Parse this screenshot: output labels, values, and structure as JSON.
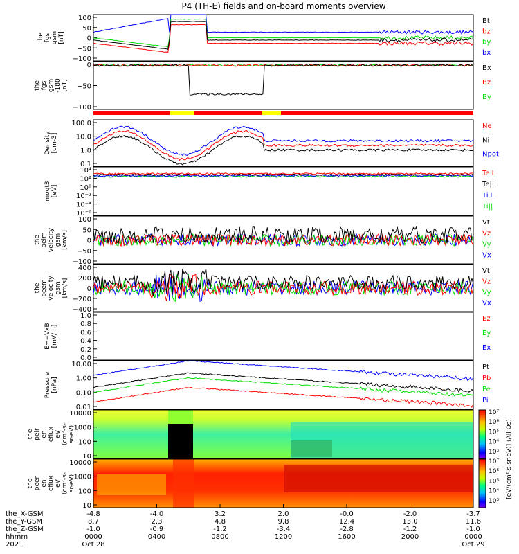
{
  "title": "P4 (TH-E) fields and on-board moments overview",
  "colors": {
    "black": "#000000",
    "red": "#ff0000",
    "green": "#00dd00",
    "blue": "#0000ff",
    "yellow": "#ffff00"
  },
  "chart_data": [
    {
      "type": "line",
      "ylabel": [
        "the",
        "fgs",
        "gsm",
        "[nT]"
      ],
      "ylim": [
        -100,
        100
      ],
      "yticks": [
        "100",
        "50",
        "0",
        "−50",
        "−100"
      ],
      "legend": [
        {
          "name": "Bt",
          "color": "#000000"
        },
        {
          "name": "bz",
          "color": "#ff0000"
        },
        {
          "name": "by",
          "color": "#00dd00"
        },
        {
          "name": "bx",
          "color": "#0000ff"
        }
      ]
    },
    {
      "type": "line",
      "ylabel": [
        "the",
        "fgs",
        "gsm",
        "-180",
        "[nT]"
      ],
      "ylim": [
        -120,
        10
      ],
      "yticks": [
        "0",
        "−50",
        "−100"
      ],
      "legend": [
        {
          "name": "Bx",
          "color": "#000000"
        },
        {
          "name": "Bz",
          "color": "#ff0000"
        },
        {
          "name": "By",
          "color": "#00dd00"
        }
      ]
    },
    {
      "type": "line",
      "ylabel": [
        "Density",
        "[cm-3]"
      ],
      "yscale": "log",
      "ylim": [
        0.1,
        100
      ],
      "yticks": [
        "100.0",
        "10.0",
        "1.0",
        "0.1"
      ],
      "legend": [
        {
          "name": "Ne",
          "color": "#ff0000"
        },
        {
          "name": "Ni",
          "color": "#000000"
        },
        {
          "name": "Npot",
          "color": "#0000ff"
        }
      ]
    },
    {
      "type": "line",
      "ylabel": [
        "moqt3",
        "[eV]"
      ],
      "yscale": "log",
      "yticks": [
        "10⁴",
        "10²",
        "10⁰",
        "10⁻²",
        "10⁻⁴",
        "10⁻⁶"
      ],
      "legend": [
        {
          "name": "Te⊥",
          "color": "#ff0000"
        },
        {
          "name": "Te||",
          "color": "#000000"
        },
        {
          "name": "Ti⊥",
          "color": "#0000ff"
        },
        {
          "name": "Ti||",
          "color": "#00dd00"
        }
      ]
    },
    {
      "type": "line",
      "ylabel": [
        "the",
        "peim",
        "velocity",
        "gsm",
        "[km/s]"
      ],
      "ylim": [
        -100,
        100
      ],
      "yticks": [
        "100",
        "50",
        "0",
        "−50",
        "−100"
      ],
      "legend": [
        {
          "name": "Vt",
          "color": "#000000"
        },
        {
          "name": "Vz",
          "color": "#ff0000"
        },
        {
          "name": "Vy",
          "color": "#00dd00"
        },
        {
          "name": "Vx",
          "color": "#0000ff"
        }
      ]
    },
    {
      "type": "line",
      "ylabel": [
        "the",
        "peem",
        "velocity",
        "gsm",
        "[km/s]"
      ],
      "ylim": [
        -400,
        400
      ],
      "yticks": [
        "400",
        "200",
        "0",
        "−200",
        "−400"
      ],
      "legend": [
        {
          "name": "Vt",
          "color": "#000000"
        },
        {
          "name": "Vz",
          "color": "#ff0000"
        },
        {
          "name": "Vy",
          "color": "#00dd00"
        },
        {
          "name": "Vx",
          "color": "#0000ff"
        }
      ]
    },
    {
      "type": "line",
      "ylabel": [
        "E=−VxB",
        "[mV/m]"
      ],
      "ylim": [
        0,
        1
      ],
      "yticks": [
        "1.0",
        "0.8",
        "0.6",
        "0.4",
        "0.2",
        "0.0"
      ],
      "legend": [
        {
          "name": "Ez",
          "color": "#ff0000"
        },
        {
          "name": "Ey",
          "color": "#00dd00"
        },
        {
          "name": "Ex",
          "color": "#0000ff"
        }
      ]
    },
    {
      "type": "line",
      "ylabel": [
        "Pressure",
        "[nPa]"
      ],
      "yscale": "log",
      "ylim": [
        0.01,
        10
      ],
      "yticks": [
        "10.00",
        "1.00",
        "0.10",
        "0.01"
      ],
      "legend": [
        {
          "name": "Pt",
          "color": "#000000"
        },
        {
          "name": "Pb",
          "color": "#ff0000"
        },
        {
          "name": "Pe",
          "color": "#00dd00"
        },
        {
          "name": "Pi",
          "color": "#0000ff"
        }
      ]
    },
    {
      "type": "heatmap",
      "ylabel": [
        "the",
        "peir",
        "en",
        "eflux",
        "eV",
        "(cm²-s-",
        "sr-eV)"
      ],
      "yscale": "log",
      "ylim": [
        5,
        20000
      ],
      "yticks": [
        "10000",
        "1000",
        "100",
        "10"
      ]
    },
    {
      "type": "heatmap",
      "ylabel": [
        "the",
        "peer",
        "en",
        "eflux",
        "eV",
        "(cm²-s-",
        "sr-eV)"
      ],
      "yscale": "log",
      "ylim": [
        5,
        20000
      ],
      "yticks": [
        "10000",
        "1000",
        "100",
        "10"
      ]
    }
  ],
  "colorbar": {
    "labels": [
      "10⁷",
      "10⁶",
      "10⁵",
      "10⁴",
      "10³",
      "10⁷",
      "10⁶",
      "10⁵",
      "10⁴",
      "10³"
    ],
    "title": "[eV/(cm²-s-sr-eV)] (All Qs)"
  },
  "time_axis": {
    "row_labels": [
      "the_X-GSM",
      "the_Y-GSM",
      "the_Z-GSM",
      "hhmm",
      "2021"
    ],
    "columns": [
      {
        "x": "-4.8",
        "y": "8.7",
        "z": "-1.0",
        "hhmm": "0000",
        "date": "Oct 28"
      },
      {
        "x": "-4.0",
        "y": "2.3",
        "z": "-0.9",
        "hhmm": "0400",
        "date": ""
      },
      {
        "x": "3.2",
        "y": "4.8",
        "z": "-1.2",
        "hhmm": "0800",
        "date": ""
      },
      {
        "x": "2.0",
        "y": "9.8",
        "z": "-3.4",
        "hhmm": "1200",
        "date": ""
      },
      {
        "x": "-0.0",
        "y": "12.4",
        "z": "-2.8",
        "hhmm": "1600",
        "date": ""
      },
      {
        "x": "-2.0",
        "y": "13.0",
        "z": "-1.2",
        "hhmm": "2000",
        "date": ""
      },
      {
        "x": "-3.7",
        "y": "11.6",
        "z": "-1.0",
        "hhmm": "0000",
        "date": "Oct 29"
      }
    ]
  }
}
